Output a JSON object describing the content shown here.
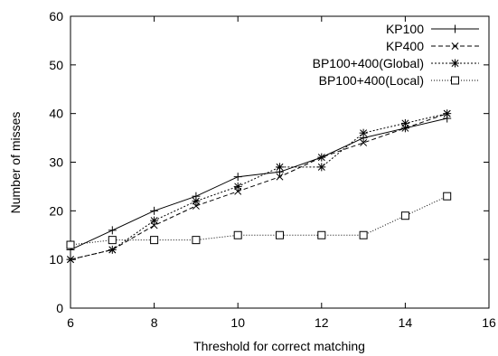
{
  "chart_data": {
    "type": "line",
    "title": "",
    "xlabel": "Threshold for correct matching",
    "ylabel": "Number of misses",
    "xlim": [
      6,
      16
    ],
    "ylim": [
      0,
      60
    ],
    "xticks": [
      6,
      8,
      10,
      12,
      14,
      16
    ],
    "yticks": [
      0,
      10,
      20,
      30,
      40,
      50,
      60
    ],
    "grid": false,
    "legend_position": "top-right",
    "series": [
      {
        "name": "KP100",
        "marker": "plus",
        "dash": "solid",
        "x": [
          6,
          7,
          8,
          9,
          10,
          11,
          12,
          13,
          14,
          15
        ],
        "y": [
          12,
          16,
          20,
          23,
          27,
          28,
          31,
          35,
          37,
          39
        ]
      },
      {
        "name": "KP400",
        "marker": "cross",
        "dash": "dashed",
        "x": [
          6,
          7,
          8,
          9,
          10,
          11,
          12,
          13,
          14,
          15
        ],
        "y": [
          10,
          12,
          17,
          21,
          24,
          27,
          31,
          34,
          37,
          40
        ]
      },
      {
        "name": "BP100+400(Global)",
        "marker": "star",
        "dash": "dotted",
        "x": [
          6,
          7,
          8,
          9,
          10,
          11,
          12,
          13,
          14,
          15
        ],
        "y": [
          10,
          12,
          18,
          22,
          25,
          29,
          29,
          36,
          38,
          40
        ]
      },
      {
        "name": "BP100+400(Local)",
        "marker": "square",
        "dash": "fine-dotted",
        "x": [
          6,
          7,
          8,
          9,
          10,
          11,
          12,
          13,
          14,
          15
        ],
        "y": [
          13,
          14,
          14,
          14,
          15,
          15,
          15,
          15,
          19,
          23
        ]
      }
    ]
  }
}
